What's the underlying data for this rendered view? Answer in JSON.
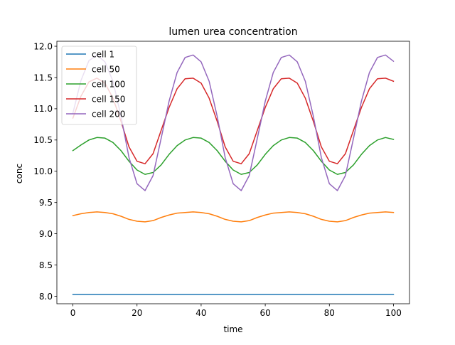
{
  "chart_data": {
    "type": "line",
    "title": "lumen urea concentration",
    "xlabel": "time",
    "ylabel": "conc",
    "xlim": [
      -5,
      105
    ],
    "ylim": [
      7.88,
      12.08
    ],
    "xticks": [
      0,
      20,
      40,
      60,
      80,
      100
    ],
    "yticks": [
      8.0,
      8.5,
      9.0,
      9.5,
      10.0,
      10.5,
      11.0,
      11.5,
      12.0
    ],
    "xtick_labels": [
      "0",
      "20",
      "40",
      "60",
      "80",
      "100"
    ],
    "ytick_labels": [
      "8.0",
      "8.5",
      "9.0",
      "9.5",
      "10.0",
      "10.5",
      "11.0",
      "11.5",
      "12.0"
    ],
    "grid": false,
    "legend_position": "top-left",
    "x": [
      0,
      2.5,
      5,
      7.5,
      10,
      12.5,
      15,
      17.5,
      20,
      22.5,
      25,
      27.5,
      30,
      32.5,
      35,
      37.5,
      40,
      42.5,
      45,
      47.5,
      50,
      52.5,
      55,
      57.5,
      60,
      62.5,
      65,
      67.5,
      70,
      72.5,
      75,
      77.5,
      80,
      82.5,
      85,
      87.5,
      90,
      92.5,
      95,
      97.5,
      100
    ],
    "series": [
      {
        "name": "cell 1",
        "color": "#1f77b4",
        "values": [
          8.03,
          8.03,
          8.03,
          8.03,
          8.03,
          8.03,
          8.03,
          8.03,
          8.03,
          8.03,
          8.03,
          8.03,
          8.03,
          8.03,
          8.03,
          8.03,
          8.03,
          8.03,
          8.03,
          8.03,
          8.03,
          8.03,
          8.03,
          8.03,
          8.03,
          8.03,
          8.03,
          8.03,
          8.03,
          8.03,
          8.03,
          8.03,
          8.03,
          8.03,
          8.03,
          8.03,
          8.03,
          8.03,
          8.03,
          8.03,
          8.03
        ]
      },
      {
        "name": "cell 50",
        "color": "#ff7f0e",
        "values": [
          9.29,
          9.32,
          9.34,
          9.35,
          9.34,
          9.32,
          9.28,
          9.23,
          9.2,
          9.19,
          9.21,
          9.26,
          9.3,
          9.33,
          9.34,
          9.35,
          9.34,
          9.32,
          9.28,
          9.23,
          9.2,
          9.19,
          9.21,
          9.26,
          9.3,
          9.33,
          9.34,
          9.35,
          9.34,
          9.32,
          9.28,
          9.23,
          9.2,
          9.19,
          9.21,
          9.26,
          9.3,
          9.33,
          9.34,
          9.35,
          9.34
        ]
      },
      {
        "name": "cell 100",
        "color": "#2ca02c",
        "values": [
          10.33,
          10.42,
          10.5,
          10.54,
          10.53,
          10.46,
          10.33,
          10.16,
          10.02,
          9.95,
          9.98,
          10.1,
          10.27,
          10.41,
          10.5,
          10.54,
          10.53,
          10.46,
          10.33,
          10.16,
          10.02,
          9.95,
          9.98,
          10.1,
          10.27,
          10.41,
          10.5,
          10.54,
          10.53,
          10.46,
          10.33,
          10.16,
          10.02,
          9.95,
          9.98,
          10.1,
          10.27,
          10.41,
          10.5,
          10.54,
          10.51
        ]
      },
      {
        "name": "cell 150",
        "color": "#d62728",
        "values": [
          10.85,
          11.2,
          11.43,
          11.49,
          11.41,
          11.17,
          10.8,
          10.39,
          10.16,
          10.12,
          10.28,
          10.65,
          11.02,
          11.32,
          11.48,
          11.49,
          11.41,
          11.17,
          10.8,
          10.39,
          10.16,
          10.12,
          10.28,
          10.65,
          11.02,
          11.32,
          11.48,
          11.49,
          11.41,
          11.17,
          10.8,
          10.39,
          10.16,
          10.12,
          10.28,
          10.65,
          11.02,
          11.32,
          11.48,
          11.49,
          11.44
        ]
      },
      {
        "name": "cell 200",
        "color": "#9467bd",
        "values": [
          10.93,
          11.45,
          11.77,
          11.86,
          11.75,
          11.44,
          10.88,
          10.22,
          9.8,
          9.69,
          9.93,
          10.52,
          11.12,
          11.58,
          11.82,
          11.86,
          11.75,
          11.44,
          10.88,
          10.22,
          9.8,
          9.69,
          9.93,
          10.52,
          11.12,
          11.58,
          11.82,
          11.86,
          11.75,
          11.44,
          10.88,
          10.22,
          9.8,
          9.69,
          9.93,
          10.52,
          11.12,
          11.58,
          11.82,
          11.86,
          11.76
        ]
      }
    ]
  }
}
